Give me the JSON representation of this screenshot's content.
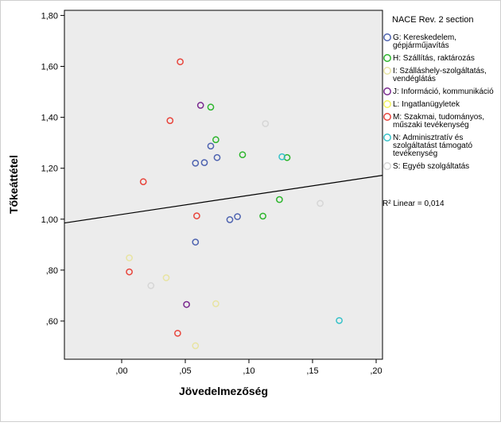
{
  "chart_data": {
    "type": "scatter",
    "xlabel": "Jövedelmezőség",
    "ylabel": "Tőkeáttétel",
    "xlim": [
      -0.045,
      0.205
    ],
    "ylim": [
      0.45,
      1.82
    ],
    "x_ticks": [
      {
        "value": 0.0,
        "label": ",00"
      },
      {
        "value": 0.05,
        "label": ",05"
      },
      {
        "value": 0.1,
        "label": ",10"
      },
      {
        "value": 0.15,
        "label": ",15"
      },
      {
        "value": 0.2,
        "label": ",20"
      }
    ],
    "y_ticks": [
      {
        "value": 0.6,
        "label": ",60"
      },
      {
        "value": 0.8,
        "label": ",80"
      },
      {
        "value": 1.0,
        "label": "1,00"
      },
      {
        "value": 1.2,
        "label": "1,20"
      },
      {
        "value": 1.4,
        "label": "1,40"
      },
      {
        "value": 1.6,
        "label": "1,60"
      },
      {
        "value": 1.8,
        "label": "1,80"
      }
    ],
    "grid": false,
    "plot_background": "#ececec",
    "legend_title": "NACE Rev. 2 section",
    "legend_position": "right",
    "fit_line": {
      "label": "Linear",
      "r2": "R² Linear = 0,014",
      "x": [
        -0.045,
        0.205
      ],
      "y": [
        0.985,
        1.172
      ]
    },
    "series": [
      {
        "name": "G: Kereskedelem, gépjárműjavítás",
        "color": "#4e63b0",
        "points": [
          [
            0.058,
            1.22
          ],
          [
            0.065,
            1.222
          ],
          [
            0.07,
            1.287
          ],
          [
            0.075,
            1.242
          ],
          [
            0.058,
            0.91
          ],
          [
            0.085,
            0.998
          ],
          [
            0.091,
            1.01
          ]
        ]
      },
      {
        "name": "H: Szállítás, raktározás",
        "color": "#2cb52c",
        "points": [
          [
            0.07,
            1.44
          ],
          [
            0.074,
            1.312
          ],
          [
            0.095,
            1.253
          ],
          [
            0.13,
            1.242
          ],
          [
            0.111,
            1.012
          ],
          [
            0.124,
            1.077
          ]
        ]
      },
      {
        "name": "I: Szálláshely-szolgáltatás, vendéglátás",
        "color": "#e8e4a2",
        "points": [
          [
            0.006,
            0.848
          ],
          [
            0.035,
            0.77
          ],
          [
            0.074,
            0.668
          ],
          [
            0.058,
            0.503
          ]
        ]
      },
      {
        "name": "J: Információ, kommunikáció",
        "color": "#7a2a8f",
        "points": [
          [
            0.062,
            1.447
          ],
          [
            0.051,
            0.665
          ]
        ]
      },
      {
        "name": "L: Ingatlanügyletek",
        "color": "#f2f25e",
        "points": []
      },
      {
        "name": "M: Szakmai, tudományos, műszaki tevékenység",
        "color": "#e8453c",
        "points": [
          [
            0.046,
            1.618
          ],
          [
            0.038,
            1.387
          ],
          [
            0.017,
            1.147
          ],
          [
            0.059,
            1.013
          ],
          [
            0.006,
            0.793
          ],
          [
            0.044,
            0.552
          ]
        ]
      },
      {
        "name": "N: Adminisztratív és szolgáltatást támogató tevékenység",
        "color": "#36c2c9",
        "points": [
          [
            0.126,
            1.245
          ],
          [
            0.171,
            0.602
          ]
        ]
      },
      {
        "name": "S: Egyéb szolgáltatás",
        "color": "#d6d6d6",
        "points": [
          [
            0.113,
            1.375
          ],
          [
            0.023,
            0.739
          ],
          [
            0.156,
            1.062
          ]
        ]
      }
    ]
  }
}
